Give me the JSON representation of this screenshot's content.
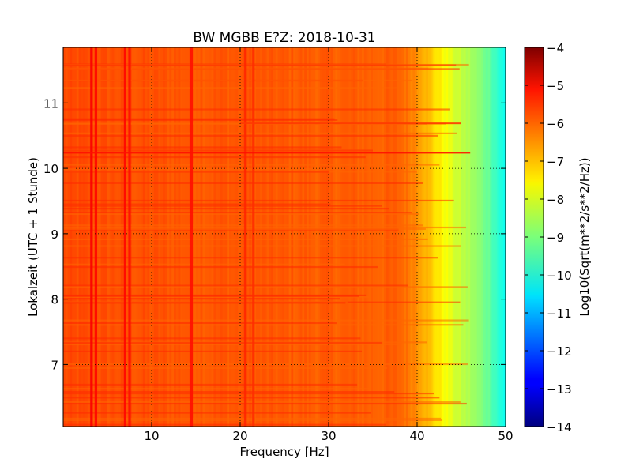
{
  "chart_data": {
    "type": "heatmap",
    "title": "BW MGBB E?Z: 2018-10-31",
    "xlabel": "Frequency [Hz]",
    "ylabel": "Lokalzeit (UTC + 1 Stunde)",
    "xlim": [
      0,
      50
    ],
    "ylim": [
      11.85,
      6.05
    ],
    "x_ticks": [
      10,
      20,
      30,
      40,
      50
    ],
    "y_ticks": [
      7,
      8,
      9,
      10,
      11
    ],
    "grid": true,
    "colorbar": {
      "label": "Log10(Sqrt(m**2/s**2/Hz))",
      "range": [
        -14,
        -4
      ],
      "ticks": [
        -4,
        -5,
        -6,
        -7,
        -8,
        -9,
        -10,
        -11,
        -12,
        -13,
        -14
      ],
      "colormap": "jet"
    },
    "background_level": -6.0,
    "rolloff": [
      {
        "freq": 0,
        "value": -6.0
      },
      {
        "freq": 38,
        "value": -6.2
      },
      {
        "freq": 40,
        "value": -6.6
      },
      {
        "freq": 42,
        "value": -7.4
      },
      {
        "freq": 44,
        "value": -8.1
      },
      {
        "freq": 46,
        "value": -8.6
      },
      {
        "freq": 48,
        "value": -9.2
      },
      {
        "freq": 50,
        "value": -10.2
      }
    ],
    "frequency_lines": [
      {
        "freq": 3.2,
        "value": -5.2
      },
      {
        "freq": 3.7,
        "value": -5.3
      },
      {
        "freq": 7.0,
        "value": -5.3
      },
      {
        "freq": 7.5,
        "value": -5.4
      },
      {
        "freq": 14.5,
        "value": -5.4
      },
      {
        "freq": 20.6,
        "value": -5.6
      },
      {
        "freq": 21.5,
        "value": -5.7
      }
    ],
    "time_bands": [
      {
        "time_start": 10.25,
        "time_end": 10.31,
        "freq_start": 0,
        "freq_end": 46,
        "value": -5.4
      },
      {
        "time_start": 10.7,
        "time_end": 10.74,
        "freq_start": 20,
        "freq_end": 45,
        "value": -5.8
      }
    ],
    "blobs": [
      {
        "freq": 30,
        "time_start": 7.7,
        "time_end": 8.0,
        "value": -5.3
      },
      {
        "freq": 30,
        "time_start": 8.8,
        "time_end": 9.1,
        "value": -5.4
      },
      {
        "freq": 30,
        "time_start": 9.95,
        "time_end": 10.3,
        "value": -5.4
      }
    ]
  }
}
